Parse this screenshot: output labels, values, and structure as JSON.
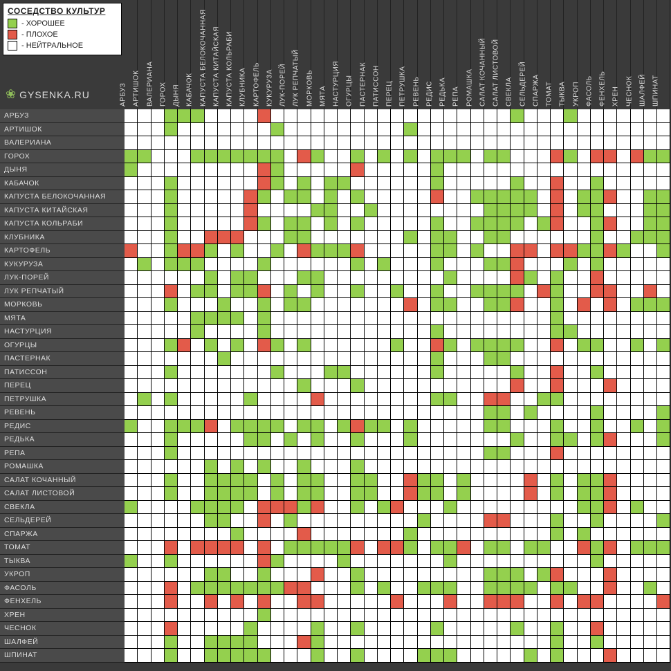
{
  "title": "СОСЕДСТВО КУЛЬТУР",
  "legend": {
    "good": "- ХОРОШЕЕ",
    "bad": "- ПЛОХОЕ",
    "neutral": "- НЕЙТРАЛЬНОЕ"
  },
  "site": "GYSENKA.RU",
  "colors": {
    "good": "#94d04e",
    "bad": "#e35b4a",
    "neutral": "#ffffff",
    "header_bg": "#3a3a3a",
    "row_bg": "#4a4a4a",
    "grid_line": "#000000",
    "text": "#dddddd"
  },
  "cell_size": 19.26,
  "row_height": 19.5,
  "plants": [
    "АРБУЗ",
    "АРТИШОК",
    "ВАЛЕРИАНА",
    "ГОРОХ",
    "ДЫНЯ",
    "КАБАЧОК",
    "КАПУСТА БЕЛОКОЧАННАЯ",
    "КАПУСТА КИТАЙСКАЯ",
    "КАПУСТА КОЛЬРАБИ",
    "КЛУБНИКА",
    "КАРТОФЕЛЬ",
    "КУКУРУЗА",
    "ЛУК-ПОРЕЙ",
    "ЛУК РЕПЧАТЫЙ",
    "МОРКОВЬ",
    "МЯТА",
    "НАСТУРЦИЯ",
    "ОГУРЦЫ",
    "ПАСТЕРНАК",
    "ПАТИССОН",
    "ПЕРЕЦ",
    "ПЕТРУШКА",
    "РЕВЕНЬ",
    "РЕДИС",
    "РЕДЬКА",
    "РЕПА",
    "РОМАШКА",
    "САЛАТ КОЧАННЫЙ",
    "САЛАТ ЛИСТОВОЙ",
    "СВЕКЛА",
    "СЕЛЬДЕРЕЙ",
    "СПАРЖА",
    "ТОМАТ",
    "ТЫКВА",
    "УКРОП",
    "ФАСОЛЬ",
    "ФЕНХЕЛЬ",
    "ХРЕН",
    "ЧЕСНОК",
    "ШАЛФЕЙ",
    "ШПИНАТ"
  ],
  "matrix": [
    [
      0,
      0,
      0,
      1,
      1,
      1,
      0,
      0,
      0,
      0,
      2,
      0,
      0,
      0,
      0,
      0,
      0,
      0,
      0,
      0,
      0,
      0,
      0,
      0,
      0,
      0,
      0,
      0,
      0,
      1,
      0,
      0,
      0,
      1,
      0,
      0,
      0,
      0,
      0,
      0,
      0
    ],
    [
      0,
      0,
      0,
      1,
      0,
      0,
      0,
      0,
      0,
      0,
      0,
      1,
      0,
      0,
      0,
      0,
      0,
      0,
      0,
      0,
      0,
      1,
      0,
      0,
      0,
      0,
      0,
      0,
      0,
      0,
      0,
      0,
      0,
      0,
      0,
      0,
      0,
      0,
      0,
      0,
      0
    ],
    [
      0,
      0,
      0,
      0,
      0,
      0,
      0,
      0,
      0,
      0,
      0,
      0,
      0,
      0,
      0,
      0,
      0,
      0,
      0,
      0,
      0,
      0,
      0,
      0,
      0,
      0,
      0,
      0,
      0,
      0,
      0,
      0,
      0,
      0,
      0,
      0,
      0,
      0,
      0,
      0,
      0
    ],
    [
      1,
      1,
      0,
      0,
      0,
      1,
      1,
      1,
      1,
      1,
      1,
      1,
      0,
      2,
      1,
      0,
      0,
      1,
      0,
      1,
      0,
      1,
      0,
      1,
      1,
      1,
      0,
      1,
      1,
      0,
      0,
      0,
      2,
      1,
      0,
      2,
      2,
      0,
      2,
      1,
      1
    ],
    [
      1,
      0,
      0,
      0,
      0,
      0,
      0,
      0,
      0,
      0,
      2,
      1,
      0,
      0,
      0,
      0,
      0,
      2,
      0,
      0,
      0,
      0,
      0,
      1,
      0,
      0,
      0,
      0,
      0,
      0,
      0,
      0,
      0,
      0,
      0,
      0,
      0,
      0,
      0,
      0,
      0
    ],
    [
      0,
      0,
      0,
      1,
      0,
      0,
      0,
      0,
      0,
      0,
      2,
      1,
      0,
      1,
      0,
      1,
      1,
      0,
      0,
      0,
      0,
      0,
      0,
      1,
      0,
      0,
      0,
      0,
      0,
      1,
      0,
      0,
      2,
      0,
      0,
      1,
      0,
      0,
      0,
      0,
      0
    ],
    [
      0,
      0,
      0,
      1,
      0,
      0,
      0,
      0,
      0,
      2,
      1,
      0,
      1,
      1,
      0,
      1,
      0,
      1,
      0,
      0,
      0,
      0,
      0,
      2,
      0,
      0,
      1,
      1,
      1,
      1,
      1,
      0,
      2,
      0,
      1,
      1,
      2,
      0,
      0,
      1,
      1
    ],
    [
      0,
      0,
      0,
      1,
      0,
      0,
      0,
      0,
      0,
      2,
      0,
      0,
      0,
      0,
      1,
      1,
      0,
      0,
      1,
      0,
      0,
      0,
      0,
      0,
      0,
      0,
      0,
      1,
      1,
      1,
      1,
      0,
      2,
      0,
      1,
      1,
      0,
      0,
      0,
      1,
      1
    ],
    [
      0,
      0,
      0,
      1,
      0,
      0,
      0,
      0,
      0,
      2,
      1,
      0,
      1,
      1,
      0,
      1,
      0,
      1,
      0,
      0,
      0,
      0,
      0,
      1,
      0,
      0,
      1,
      1,
      1,
      1,
      0,
      1,
      2,
      0,
      0,
      1,
      2,
      0,
      0,
      1,
      1
    ],
    [
      0,
      0,
      0,
      1,
      0,
      0,
      2,
      2,
      2,
      0,
      0,
      0,
      1,
      1,
      0,
      0,
      0,
      0,
      0,
      0,
      0,
      1,
      0,
      1,
      1,
      0,
      0,
      1,
      1,
      0,
      0,
      0,
      0,
      0,
      0,
      1,
      0,
      0,
      1,
      1,
      1
    ],
    [
      2,
      0,
      0,
      1,
      2,
      2,
      1,
      0,
      1,
      0,
      0,
      1,
      0,
      2,
      1,
      1,
      1,
      2,
      0,
      0,
      0,
      0,
      0,
      1,
      1,
      0,
      1,
      0,
      0,
      2,
      2,
      0,
      2,
      2,
      1,
      1,
      2,
      1,
      0,
      0,
      1
    ],
    [
      0,
      1,
      0,
      1,
      1,
      1,
      0,
      0,
      0,
      0,
      1,
      0,
      0,
      0,
      0,
      0,
      0,
      1,
      0,
      1,
      0,
      0,
      0,
      1,
      0,
      0,
      0,
      1,
      1,
      2,
      0,
      0,
      0,
      1,
      0,
      1,
      0,
      0,
      0,
      0,
      0
    ],
    [
      0,
      0,
      0,
      0,
      0,
      0,
      1,
      0,
      1,
      1,
      0,
      0,
      0,
      1,
      1,
      0,
      0,
      0,
      0,
      0,
      0,
      0,
      0,
      0,
      1,
      0,
      0,
      0,
      0,
      2,
      1,
      0,
      1,
      0,
      0,
      2,
      0,
      0,
      0,
      0,
      0
    ],
    [
      0,
      0,
      0,
      2,
      0,
      1,
      1,
      0,
      1,
      1,
      2,
      0,
      1,
      0,
      1,
      0,
      0,
      1,
      0,
      0,
      1,
      0,
      0,
      1,
      0,
      0,
      1,
      1,
      1,
      1,
      0,
      2,
      1,
      0,
      0,
      2,
      2,
      0,
      0,
      2,
      0
    ],
    [
      0,
      0,
      0,
      1,
      0,
      0,
      0,
      1,
      0,
      0,
      1,
      0,
      1,
      1,
      0,
      0,
      0,
      0,
      0,
      0,
      0,
      2,
      0,
      1,
      1,
      0,
      0,
      1,
      1,
      2,
      0,
      0,
      1,
      0,
      2,
      0,
      2,
      0,
      1,
      1,
      1
    ],
    [
      0,
      0,
      0,
      0,
      0,
      1,
      1,
      1,
      1,
      0,
      1,
      0,
      0,
      0,
      0,
      0,
      0,
      0,
      0,
      0,
      0,
      0,
      0,
      0,
      0,
      0,
      0,
      0,
      0,
      0,
      0,
      0,
      1,
      0,
      0,
      0,
      0,
      0,
      0,
      0,
      0
    ],
    [
      0,
      0,
      0,
      0,
      0,
      1,
      0,
      0,
      0,
      0,
      1,
      0,
      0,
      0,
      0,
      0,
      0,
      0,
      0,
      0,
      0,
      0,
      0,
      1,
      0,
      0,
      0,
      0,
      0,
      0,
      0,
      0,
      1,
      1,
      0,
      0,
      0,
      0,
      0,
      0,
      0
    ],
    [
      0,
      0,
      0,
      1,
      2,
      0,
      1,
      0,
      1,
      0,
      2,
      1,
      0,
      1,
      0,
      0,
      0,
      0,
      0,
      0,
      1,
      0,
      0,
      2,
      1,
      0,
      1,
      1,
      1,
      1,
      0,
      0,
      2,
      0,
      1,
      1,
      0,
      0,
      1,
      0,
      1
    ],
    [
      0,
      0,
      0,
      0,
      0,
      0,
      0,
      1,
      0,
      0,
      0,
      0,
      0,
      0,
      0,
      0,
      0,
      0,
      0,
      0,
      0,
      0,
      0,
      1,
      0,
      0,
      0,
      1,
      1,
      0,
      0,
      0,
      0,
      0,
      0,
      0,
      0,
      0,
      0,
      0,
      0
    ],
    [
      0,
      0,
      0,
      1,
      0,
      0,
      0,
      0,
      0,
      0,
      0,
      1,
      0,
      0,
      0,
      1,
      1,
      0,
      0,
      0,
      0,
      0,
      0,
      1,
      0,
      0,
      0,
      0,
      0,
      1,
      0,
      0,
      2,
      0,
      0,
      1,
      0,
      0,
      0,
      0,
      0
    ],
    [
      0,
      0,
      0,
      0,
      0,
      0,
      0,
      0,
      0,
      0,
      0,
      0,
      0,
      1,
      0,
      0,
      0,
      1,
      0,
      0,
      0,
      0,
      0,
      0,
      0,
      0,
      0,
      0,
      0,
      2,
      0,
      0,
      2,
      0,
      0,
      0,
      2,
      0,
      0,
      0,
      0
    ],
    [
      0,
      1,
      0,
      1,
      0,
      0,
      0,
      0,
      0,
      1,
      0,
      0,
      0,
      0,
      2,
      0,
      0,
      0,
      0,
      0,
      0,
      0,
      0,
      1,
      1,
      0,
      0,
      2,
      2,
      0,
      0,
      1,
      1,
      0,
      0,
      0,
      0,
      0,
      0,
      0,
      0
    ],
    [
      0,
      0,
      0,
      0,
      0,
      0,
      0,
      0,
      0,
      0,
      0,
      0,
      0,
      0,
      0,
      0,
      0,
      0,
      0,
      0,
      0,
      0,
      0,
      0,
      0,
      0,
      0,
      1,
      1,
      0,
      1,
      0,
      0,
      0,
      0,
      1,
      0,
      0,
      0,
      0,
      1
    ],
    [
      1,
      0,
      0,
      1,
      1,
      1,
      2,
      0,
      1,
      1,
      1,
      1,
      0,
      1,
      1,
      0,
      1,
      2,
      1,
      1,
      0,
      1,
      0,
      0,
      0,
      0,
      0,
      1,
      1,
      0,
      0,
      0,
      1,
      0,
      0,
      1,
      0,
      0,
      1,
      0,
      1
    ],
    [
      0,
      0,
      0,
      1,
      0,
      0,
      0,
      0,
      0,
      1,
      1,
      0,
      1,
      0,
      1,
      0,
      0,
      1,
      0,
      0,
      0,
      1,
      0,
      0,
      0,
      0,
      0,
      0,
      0,
      1,
      0,
      0,
      1,
      1,
      0,
      1,
      2,
      0,
      0,
      0,
      1
    ],
    [
      0,
      0,
      0,
      1,
      0,
      0,
      0,
      0,
      0,
      0,
      0,
      0,
      0,
      0,
      0,
      0,
      0,
      0,
      0,
      0,
      0,
      0,
      0,
      0,
      0,
      0,
      0,
      1,
      1,
      0,
      0,
      0,
      2,
      0,
      0,
      0,
      0,
      0,
      0,
      0,
      0
    ],
    [
      0,
      0,
      0,
      0,
      0,
      0,
      1,
      0,
      1,
      0,
      1,
      0,
      0,
      1,
      0,
      0,
      0,
      1,
      0,
      0,
      0,
      0,
      0,
      0,
      0,
      0,
      0,
      0,
      0,
      0,
      0,
      0,
      0,
      0,
      0,
      0,
      0,
      0,
      0,
      0,
      0
    ],
    [
      0,
      0,
      0,
      1,
      0,
      0,
      1,
      1,
      1,
      1,
      0,
      1,
      0,
      1,
      1,
      0,
      0,
      1,
      1,
      0,
      0,
      2,
      1,
      1,
      0,
      1,
      0,
      0,
      0,
      0,
      2,
      0,
      1,
      0,
      1,
      1,
      2,
      0,
      0,
      0,
      0
    ],
    [
      0,
      0,
      0,
      1,
      0,
      0,
      1,
      1,
      1,
      1,
      0,
      1,
      0,
      1,
      1,
      0,
      0,
      1,
      1,
      0,
      0,
      2,
      1,
      1,
      0,
      1,
      0,
      0,
      0,
      0,
      2,
      0,
      1,
      0,
      1,
      1,
      2,
      0,
      0,
      0,
      0
    ],
    [
      1,
      0,
      0,
      0,
      0,
      1,
      1,
      1,
      1,
      0,
      2,
      2,
      2,
      1,
      2,
      0,
      0,
      1,
      0,
      1,
      2,
      0,
      0,
      0,
      1,
      0,
      0,
      0,
      0,
      0,
      0,
      0,
      0,
      0,
      1,
      1,
      2,
      0,
      1,
      0,
      0
    ],
    [
      0,
      0,
      0,
      0,
      0,
      0,
      1,
      1,
      0,
      0,
      2,
      0,
      1,
      0,
      0,
      0,
      0,
      0,
      0,
      0,
      0,
      0,
      1,
      0,
      0,
      0,
      0,
      2,
      2,
      0,
      0,
      0,
      1,
      0,
      0,
      1,
      0,
      0,
      0,
      0,
      1
    ],
    [
      0,
      0,
      0,
      0,
      0,
      0,
      0,
      0,
      1,
      0,
      0,
      0,
      0,
      2,
      0,
      0,
      0,
      0,
      0,
      0,
      0,
      1,
      0,
      0,
      0,
      0,
      0,
      0,
      0,
      0,
      0,
      0,
      1,
      0,
      1,
      0,
      0,
      0,
      0,
      0,
      0
    ],
    [
      0,
      0,
      0,
      2,
      0,
      2,
      2,
      2,
      2,
      0,
      2,
      0,
      1,
      1,
      1,
      1,
      1,
      2,
      0,
      2,
      2,
      1,
      0,
      1,
      1,
      2,
      0,
      1,
      1,
      0,
      1,
      1,
      0,
      0,
      2,
      1,
      2,
      0,
      1,
      1,
      1
    ],
    [
      1,
      0,
      0,
      1,
      0,
      0,
      0,
      0,
      0,
      0,
      2,
      1,
      0,
      0,
      0,
      0,
      1,
      0,
      0,
      0,
      0,
      0,
      0,
      0,
      1,
      0,
      0,
      0,
      0,
      0,
      0,
      0,
      0,
      0,
      0,
      1,
      0,
      0,
      0,
      0,
      0
    ],
    [
      0,
      0,
      0,
      0,
      0,
      0,
      1,
      1,
      0,
      0,
      1,
      0,
      0,
      0,
      2,
      0,
      0,
      1,
      0,
      0,
      0,
      0,
      0,
      0,
      0,
      0,
      0,
      1,
      1,
      1,
      0,
      1,
      2,
      0,
      0,
      0,
      2,
      0,
      0,
      0,
      0
    ],
    [
      0,
      0,
      0,
      2,
      0,
      1,
      1,
      1,
      1,
      1,
      1,
      1,
      2,
      2,
      0,
      0,
      0,
      1,
      0,
      1,
      0,
      0,
      1,
      1,
      1,
      0,
      0,
      1,
      1,
      1,
      1,
      0,
      1,
      1,
      0,
      0,
      2,
      0,
      0,
      1,
      0
    ],
    [
      0,
      0,
      0,
      2,
      0,
      0,
      2,
      0,
      2,
      0,
      2,
      0,
      0,
      2,
      2,
      0,
      0,
      0,
      0,
      0,
      2,
      0,
      0,
      0,
      2,
      0,
      0,
      2,
      2,
      2,
      0,
      0,
      2,
      0,
      2,
      2,
      0,
      0,
      0,
      0,
      2
    ],
    [
      0,
      0,
      0,
      0,
      0,
      0,
      0,
      0,
      0,
      0,
      1,
      0,
      0,
      0,
      0,
      0,
      0,
      0,
      0,
      0,
      0,
      0,
      0,
      0,
      0,
      0,
      0,
      0,
      0,
      0,
      0,
      0,
      0,
      0,
      0,
      0,
      0,
      0,
      0,
      0,
      0
    ],
    [
      0,
      0,
      0,
      2,
      0,
      0,
      0,
      0,
      0,
      1,
      0,
      0,
      0,
      0,
      1,
      0,
      0,
      1,
      0,
      0,
      0,
      0,
      0,
      1,
      0,
      0,
      0,
      0,
      0,
      1,
      0,
      0,
      1,
      0,
      0,
      2,
      0,
      0,
      0,
      0,
      0
    ],
    [
      0,
      0,
      0,
      1,
      0,
      0,
      1,
      1,
      1,
      1,
      0,
      0,
      0,
      2,
      1,
      0,
      0,
      0,
      0,
      0,
      0,
      0,
      0,
      0,
      0,
      0,
      0,
      0,
      0,
      0,
      0,
      0,
      1,
      0,
      0,
      1,
      0,
      0,
      0,
      0,
      0
    ],
    [
      0,
      0,
      0,
      1,
      0,
      0,
      1,
      1,
      1,
      1,
      1,
      0,
      0,
      0,
      1,
      0,
      0,
      1,
      0,
      0,
      0,
      0,
      1,
      1,
      1,
      0,
      0,
      0,
      0,
      0,
      1,
      0,
      1,
      0,
      0,
      0,
      2,
      0,
      0,
      0,
      0
    ]
  ]
}
